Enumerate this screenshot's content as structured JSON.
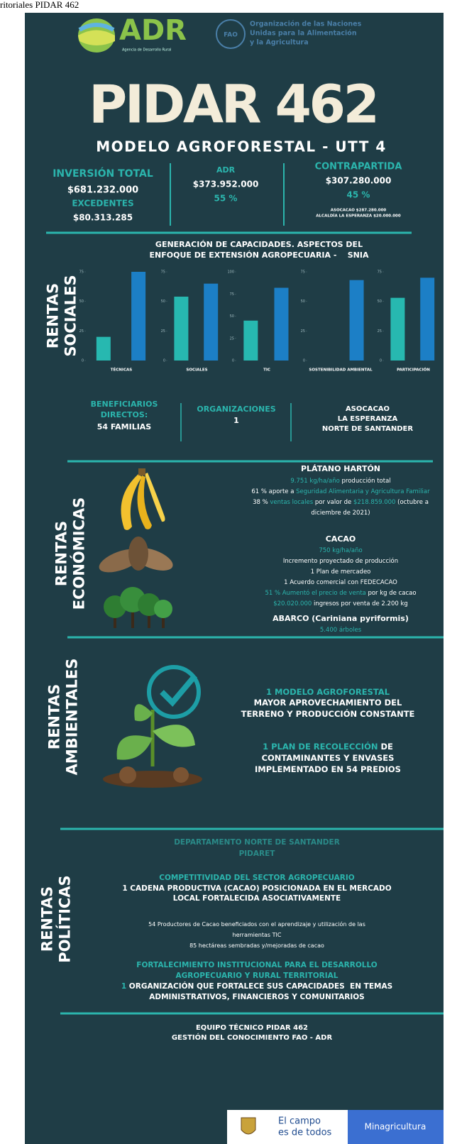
{
  "top_text": "ritoriales PIDAR 462",
  "adr": {
    "name": "ADR",
    "tagline": "Agencia de Desarrollo Rural"
  },
  "fao": {
    "mark": "FAO",
    "lines": [
      "Organización de las Naciones",
      "Unidas para la Alimentación",
      "y la Agricultura"
    ]
  },
  "title": "PIDAR 462",
  "subtitle": "MODELO AGROFORESTAL - UTT 4",
  "investment": {
    "total_label": "INVERSIÓN TOTAL",
    "total": "$681.232.000",
    "surplus_label": "EXCEDENTES",
    "surplus": "$80.313.285",
    "adr_label": "ADR",
    "adr_amount": "$373.952.000",
    "adr_share": "55 %",
    "counterpart_label": "CONTRAPARTIDA",
    "counterpart_amount": "$307.280.000",
    "counterpart_share": "45 %",
    "counterpart_details": [
      "ASOCACAO $287.280.000",
      "ALCALDÍA LA ESPERANZA $20.000.000"
    ]
  },
  "social": {
    "heading": [
      "RENTAS",
      "SOCIALES"
    ],
    "chart_title": [
      "GENERACIÓN DE CAPACIDADES. ASPECTOS DEL",
      "ENFOQUE DE EXTENSIÓN AGROPECUARIA -    SNIA"
    ]
  },
  "chart_data": [
    {
      "type": "bar",
      "categories": [
        "TÉCNICAS"
      ],
      "series": [
        {
          "color": "#27b8b0",
          "values": [
            20
          ]
        },
        {
          "color": "#1c7fc6",
          "values": [
            75
          ]
        }
      ],
      "ylim": [
        0,
        75
      ],
      "yticks": [
        0,
        25,
        50,
        75
      ]
    },
    {
      "type": "bar",
      "categories": [
        "SOCIALES"
      ],
      "series": [
        {
          "color": "#27b8b0",
          "values": [
            54
          ]
        },
        {
          "color": "#1c7fc6",
          "values": [
            65
          ]
        }
      ],
      "ylim": [
        0,
        75
      ],
      "yticks": [
        0,
        25,
        50,
        75
      ]
    },
    {
      "type": "bar",
      "categories": [
        "TIC"
      ],
      "series": [
        {
          "color": "#27b8b0",
          "values": [
            45
          ]
        },
        {
          "color": "#1c7fc6",
          "values": [
            82
          ]
        }
      ],
      "ylim": [
        0,
        100
      ],
      "yticks": [
        0,
        25,
        50,
        75,
        100
      ]
    },
    {
      "type": "bar",
      "categories": [
        "SOSTENIBILIDAD AMBIENTAL"
      ],
      "series": [
        {
          "color": "#27b8b0",
          "values": [
            null
          ]
        },
        {
          "color": "#1c7fc6",
          "values": [
            68
          ]
        }
      ],
      "ylim": [
        0,
        75
      ],
      "yticks": [
        0,
        25,
        50,
        75
      ]
    },
    {
      "type": "bar",
      "categories": [
        "PARTICIPACIÓN"
      ],
      "series": [
        {
          "color": "#27b8b0",
          "values": [
            53
          ]
        },
        {
          "color": "#1c7fc6",
          "values": [
            70
          ]
        }
      ],
      "ylim": [
        0,
        75
      ],
      "yticks": [
        0,
        25,
        50,
        75
      ]
    }
  ],
  "beneficiaries": {
    "direct_label": [
      "BENEFICIARIOS",
      "DIRECTOS:"
    ],
    "direct": "54 FAMILIAS",
    "org_label": "ORGANIZACIONES",
    "org_count": "1",
    "org_names": [
      "ASOCACAO",
      "LA ESPERANZA",
      "NORTE DE SANTANDER"
    ]
  },
  "economic": {
    "heading": [
      "RENTAS",
      "ECONÓMICAS"
    ],
    "lines": [
      [
        {
          "text": "PLÁTANO HARTÓN",
          "color": "#ffffff"
        }
      ],
      [
        {
          "text": "9.751 kg/ha/año",
          "color": "#2bb5ad"
        },
        {
          "text": " producción total",
          "color": "#ffffff"
        }
      ],
      [
        {
          "text": "61 % aporte a ",
          "color": "#ffffff"
        },
        {
          "text": "Seguridad Alimentaria y Agricultura Familiar",
          "color": "#2bb5ad"
        }
      ],
      [
        {
          "text": "38 % ",
          "color": "#ffffff"
        },
        {
          "text": "ventas locales",
          "color": "#2bb5ad"
        },
        {
          "text": " por valor de ",
          "color": "#ffffff"
        },
        {
          "text": "$218.859.000",
          "color": "#2bb5ad"
        },
        {
          "text": " (octubre a",
          "color": "#ffffff"
        }
      ],
      [
        {
          "text": "diciembre de 2021)",
          "color": "#ffffff"
        }
      ],
      [
        {
          "text": "CACAO",
          "color": "#ffffff"
        }
      ],
      [
        {
          "text": "750 kg/ha/año",
          "color": "#2bb5ad"
        }
      ],
      [
        {
          "text": "Incremento proyectado de producción",
          "color": "#ffffff"
        }
      ],
      [
        {
          "text": "1 Plan de mercadeo",
          "color": "#ffffff"
        }
      ],
      [
        {
          "text": "1 Acuerdo comercial con FEDECACAO",
          "color": "#ffffff"
        }
      ],
      [
        {
          "text": "51 % Aumentó el precio de venta",
          "color": "#2bb5ad"
        },
        {
          "text": " por kg de cacao",
          "color": "#ffffff"
        }
      ],
      [
        {
          "text": "$20.020.000",
          "color": "#2bb5ad"
        },
        {
          "text": " ingresos por venta de 2.200 kg",
          "color": "#ffffff"
        }
      ],
      [
        {
          "text": "ABARCO (Cariniana pyriformis)",
          "color": "#ffffff"
        }
      ],
      [
        {
          "text": "5.400 árboles",
          "color": "#2bb5ad"
        }
      ]
    ]
  },
  "environmental": {
    "heading": [
      "RENTAS",
      "AMBIENTALES"
    ],
    "lines": [
      [
        {
          "text": "1 MODELO AGROFORESTAL",
          "color": "#2bb5ad"
        }
      ],
      [
        {
          "text": "MAYOR APROVECHAMIENTO DEL",
          "color": "#ffffff"
        }
      ],
      [
        {
          "text": "TERRENO Y PRODUCCIÓN CONSTANTE",
          "color": "#ffffff"
        }
      ],
      [
        {
          "text": "1 PLAN DE RECOLECCIÓN",
          "color": "#2bb5ad"
        },
        {
          "text": " DE",
          "color": "#ffffff"
        }
      ],
      [
        {
          "text": "CONTAMINANTES Y ENVASES",
          "color": "#ffffff"
        }
      ],
      [
        {
          "text": "IMPLEMENTADO EN 54 PREDIOS",
          "color": "#ffffff"
        }
      ]
    ]
  },
  "political": {
    "heading": [
      "RENTAS",
      "POLÍTICAS"
    ],
    "lines": [
      [
        {
          "text": "DEPARTAMENTO NORTE DE SANTANDER",
          "color": "#2a8a88"
        }
      ],
      [
        {
          "text": "PIDARET",
          "color": "#2a8a88"
        }
      ],
      [
        {
          "text": "COMPETITIVIDAD DEL SECTOR AGROPECUARIO",
          "color": "#2bb5ad"
        }
      ],
      [
        {
          "text": "1 CADENA PRODUCTIVA (CACAO) POSICIONADA EN EL MERCADO",
          "color": "#ffffff"
        }
      ],
      [
        {
          "text": "LOCAL FORTALECIDA ASOCIATIVAMENTE",
          "color": "#ffffff"
        }
      ],
      [
        {
          "text": "54 Productores de Cacao beneficiados con el aprendizaje y utilización de las",
          "color": "#ffffff"
        }
      ],
      [
        {
          "text": "herramientas TIC",
          "color": "#ffffff"
        }
      ],
      [
        {
          "text": "85 hectáreas sembradas y/mejoradas de cacao",
          "color": "#ffffff"
        }
      ],
      [
        {
          "text": "FORTALECIMIENTO INSTITUCIONAL PARA EL DESARROLLO",
          "color": "#2bb5ad"
        }
      ],
      [
        {
          "text": "AGROPECUARIO Y RURAL TERRITORIAL",
          "color": "#2bb5ad"
        }
      ],
      [
        {
          "text": "1",
          "color": "#2bb5ad"
        },
        {
          "text": " ORGANIZACIÓN QUE FORTALECE SUS CAPACIDADES  EN TEMAS",
          "color": "#ffffff"
        }
      ],
      [
        {
          "text": "ADMINISTRATIVOS, FINANCIEROS Y COMUNITARIOS",
          "color": "#ffffff"
        }
      ]
    ]
  },
  "credits": [
    "EQUIPO TÉCNICO PIDAR 462",
    "GESTIÓN DEL CONOCIMIENTO FAO - ADR"
  ],
  "footer": {
    "slogan": [
      "El campo",
      "es de todos"
    ],
    "ministry": "Minagricultura"
  }
}
